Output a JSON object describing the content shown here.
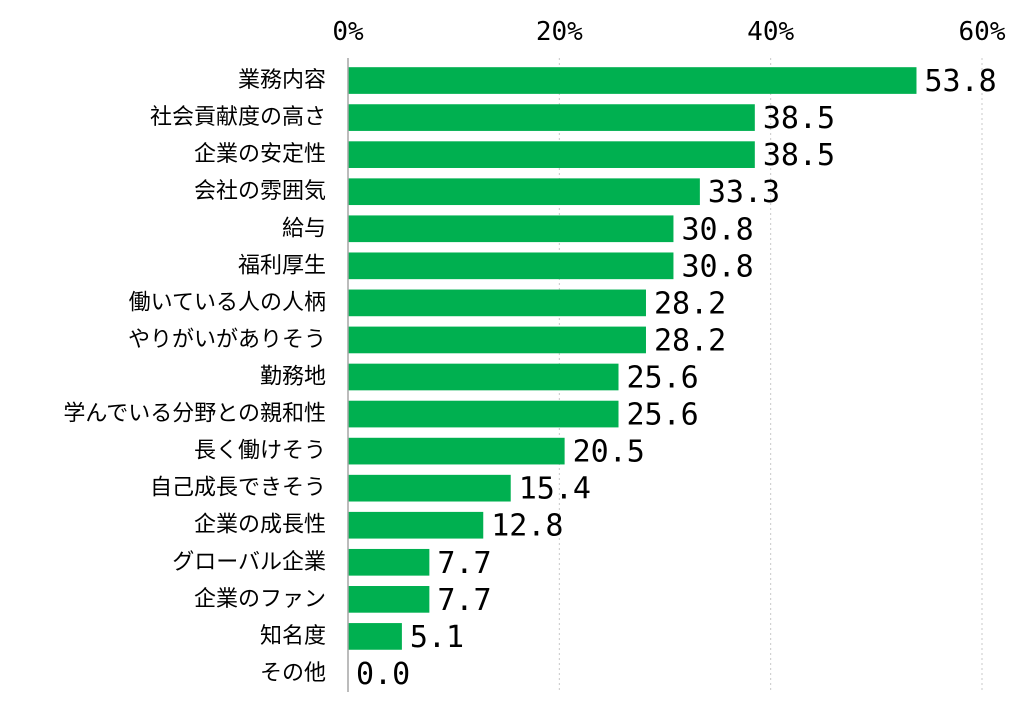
{
  "chart_data": {
    "type": "bar",
    "orientation": "horizontal",
    "categories": [
      "業務内容",
      "社会貢献度の高さ",
      "企業の安定性",
      "会社の雰囲気",
      "給与",
      "福利厚生",
      "働いている人の人柄",
      "やりがいがありそう",
      "勤務地",
      "学んでいる分野との親和性",
      "長く働けそう",
      "自己成長できそう",
      "企業の成長性",
      "グローバル企業",
      "企業のファン",
      "知名度",
      "その他"
    ],
    "values": [
      53.8,
      38.5,
      38.5,
      33.3,
      30.8,
      30.8,
      28.2,
      28.2,
      25.6,
      25.6,
      20.5,
      15.4,
      12.8,
      7.7,
      7.7,
      5.1,
      0.0
    ],
    "value_labels": [
      "53.8",
      "38.5",
      "38.5",
      "33.3",
      "30.8",
      "30.8",
      "28.2",
      "28.2",
      "25.6",
      "25.6",
      "20.5",
      "15.4",
      "12.8",
      "7.7",
      "7.7",
      "5.1",
      "0.0"
    ],
    "x_ticks": [
      0,
      20,
      40,
      60
    ],
    "x_tick_labels": [
      "0%",
      "20%",
      "40%",
      "60%"
    ],
    "xlim": [
      0,
      60
    ],
    "x_axis_position": "top",
    "grid": "vertical-dotted",
    "legend": "none",
    "bar_color": "#00b050",
    "title": "",
    "xlabel": "",
    "ylabel": ""
  }
}
